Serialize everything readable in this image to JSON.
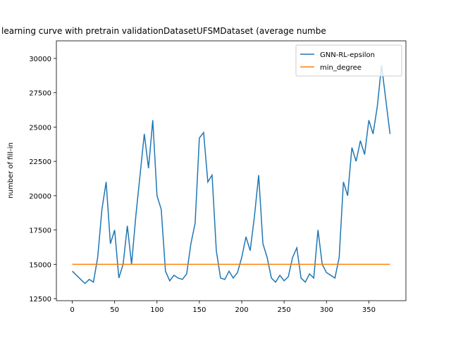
{
  "chart_data": {
    "type": "line",
    "title": "learning curve with pretrain validationDatasetUFSMDataset (average numbe",
    "ylabel": "number of fill-in",
    "xlim": [
      -18.75,
      393.75
    ],
    "ylim": [
      12350,
      31280
    ],
    "xticks": [
      0,
      50,
      100,
      150,
      200,
      250,
      300,
      350
    ],
    "yticks": [
      12500,
      15000,
      17500,
      20000,
      22500,
      25000,
      27500,
      30000
    ],
    "legend": "upper right",
    "series": [
      {
        "name": "GNN-RL-epsilon",
        "color": "#1f77b4",
        "x": [
          0,
          5,
          10,
          15,
          20,
          25,
          30,
          35,
          40,
          45,
          50,
          55,
          60,
          65,
          70,
          75,
          80,
          85,
          90,
          95,
          100,
          105,
          110,
          115,
          120,
          125,
          130,
          135,
          140,
          145,
          150,
          155,
          160,
          165,
          170,
          175,
          180,
          185,
          190,
          195,
          200,
          205,
          210,
          215,
          220,
          225,
          230,
          235,
          240,
          245,
          250,
          255,
          260,
          265,
          270,
          275,
          280,
          285,
          290,
          295,
          300,
          305,
          310,
          315,
          320,
          325,
          330,
          335,
          340,
          345,
          350,
          355,
          360,
          365,
          370,
          375
        ],
        "values": [
          14500,
          14200,
          13900,
          13600,
          13900,
          13700,
          15500,
          19000,
          21000,
          16500,
          17500,
          14000,
          15000,
          17800,
          15000,
          18500,
          21500,
          24500,
          22000,
          25500,
          20000,
          19000,
          14500,
          13800,
          14200,
          14000,
          13900,
          14300,
          16500,
          18000,
          24200,
          24600,
          21000,
          21500,
          16000,
          14000,
          13900,
          14500,
          14000,
          14400,
          15500,
          17000,
          16000,
          18500,
          21500,
          16500,
          15500,
          14000,
          13700,
          14200,
          13800,
          14100,
          15500,
          16200,
          14000,
          13700,
          14300,
          14000,
          17500,
          15000,
          14400,
          14200,
          14000,
          15500,
          21000,
          20000,
          23500,
          22500,
          24000,
          23000,
          25500,
          24500,
          26500,
          29500,
          27000,
          24500
        ]
      },
      {
        "name": "min_degree",
        "color": "#ff7f0e",
        "x": [
          0,
          375
        ],
        "values": [
          15000,
          15000
        ]
      }
    ]
  }
}
